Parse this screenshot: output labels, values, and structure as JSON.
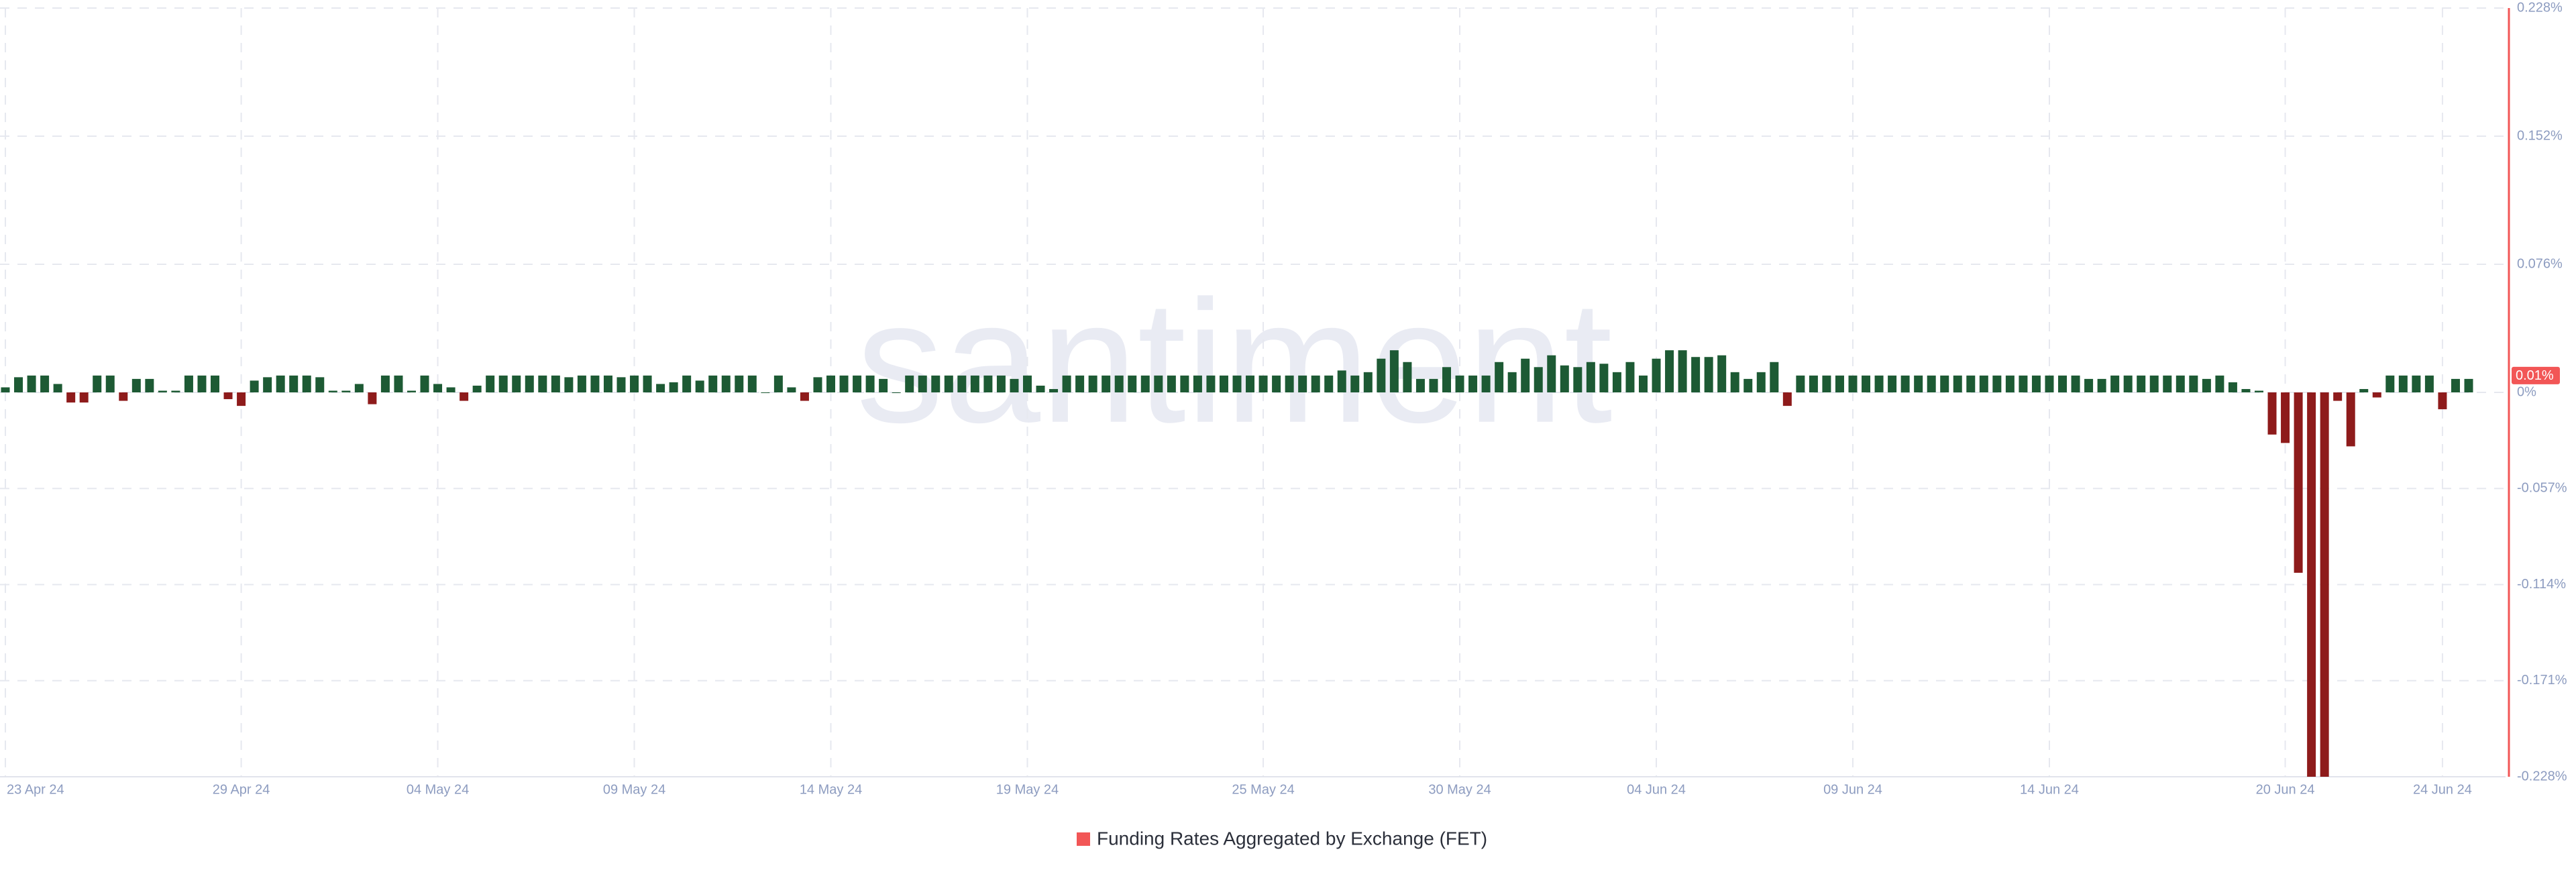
{
  "chart_data": {
    "type": "bar",
    "watermark": "santiment",
    "categories": [
      "23 Apr 24",
      null,
      null,
      null,
      null,
      null,
      null,
      null,
      null,
      null,
      null,
      null,
      null,
      null,
      null,
      null,
      null,
      null,
      "29 Apr 24",
      null,
      null,
      null,
      null,
      null,
      null,
      null,
      null,
      null,
      null,
      null,
      null,
      null,
      null,
      "04 May 24",
      null,
      null,
      null,
      null,
      null,
      null,
      null,
      null,
      null,
      null,
      null,
      null,
      null,
      null,
      "09 May 24",
      null,
      null,
      null,
      null,
      null,
      null,
      null,
      null,
      null,
      null,
      null,
      null,
      null,
      null,
      "14 May 24",
      null,
      null,
      null,
      null,
      null,
      null,
      null,
      null,
      null,
      null,
      null,
      null,
      null,
      null,
      "19 May 24",
      null,
      null,
      null,
      null,
      null,
      null,
      null,
      null,
      null,
      null,
      null,
      null,
      null,
      null,
      null,
      null,
      null,
      "25 May 24",
      null,
      null,
      null,
      null,
      null,
      null,
      null,
      null,
      null,
      null,
      null,
      null,
      null,
      null,
      "30 May 24",
      null,
      null,
      null,
      null,
      null,
      null,
      null,
      null,
      null,
      null,
      null,
      null,
      null,
      null,
      "04 Jun 24",
      null,
      null,
      null,
      null,
      null,
      null,
      null,
      null,
      null,
      null,
      null,
      null,
      null,
      null,
      "09 Jun 24",
      null,
      null,
      null,
      null,
      null,
      null,
      null,
      null,
      null,
      null,
      null,
      null,
      null,
      null,
      "14 Jun 24",
      null,
      null,
      null,
      null,
      null,
      null,
      null,
      null,
      null,
      null,
      null,
      null,
      null,
      null,
      null,
      null,
      null,
      "20 Jun 24",
      null,
      null,
      null,
      null,
      null,
      null,
      null,
      null,
      null,
      null,
      null,
      "24 Jun 24",
      null,
      null
    ],
    "series": [
      {
        "name": "Funding Rates Aggregated by Exchange (FET)",
        "color": "#1d5a34",
        "negative_color": "#8e1b1b",
        "values": [
          0.003,
          0.009,
          0.01,
          0.01,
          0.005,
          -0.006,
          -0.006,
          0.01,
          0.01,
          -0.005,
          0.008,
          0.008,
          0.001,
          0.001,
          0.01,
          0.01,
          0.01,
          -0.004,
          -0.008,
          0.007,
          0.009,
          0.01,
          0.01,
          0.01,
          0.009,
          0.001,
          0.001,
          0.005,
          -0.007,
          0.01,
          0.01,
          0.001,
          0.01,
          0.005,
          0.003,
          -0.005,
          0.004,
          0.01,
          0.01,
          0.01,
          0.01,
          0.01,
          0.01,
          0.009,
          0.01,
          0.01,
          0.01,
          0.009,
          0.01,
          0.01,
          0.005,
          0.006,
          0.01,
          0.007,
          0.01,
          0.01,
          0.01,
          0.01,
          0,
          0.01,
          0.003,
          -0.005,
          0.009,
          0.01,
          0.01,
          0.01,
          0.01,
          0.008,
          0,
          0.01,
          0.01,
          0.01,
          0.01,
          0.01,
          0.01,
          0.01,
          0.01,
          0.008,
          0.01,
          0.004,
          0.002,
          0.01,
          0.01,
          0.01,
          0.01,
          0.01,
          0.01,
          0.01,
          0.01,
          0.01,
          0.01,
          0.01,
          0.01,
          0.01,
          0.01,
          0.01,
          0.01,
          0.01,
          0.01,
          0.01,
          0.01,
          0.01,
          0.013,
          0.01,
          0.012,
          0.02,
          0.025,
          0.018,
          0.008,
          0.008,
          0.015,
          0.01,
          0.01,
          0.01,
          0.018,
          0.012,
          0.02,
          0.015,
          0.022,
          0.016,
          0.015,
          0.018,
          0.017,
          0.012,
          0.018,
          0.01,
          0.02,
          0.025,
          0.025,
          0.021,
          0.021,
          0.022,
          0.012,
          0.008,
          0.012,
          0.018,
          -0.008,
          0.01,
          0.01,
          0.01,
          0.01,
          0.01,
          0.01,
          0.01,
          0.01,
          0.01,
          0.01,
          0.01,
          0.01,
          0.01,
          0.01,
          0.01,
          0.01,
          0.01,
          0.01,
          0.01,
          0.01,
          0.01,
          0.01,
          0.008,
          0.008,
          0.01,
          0.01,
          0.01,
          0.01,
          0.01,
          0.01,
          0.01,
          0.008,
          0.01,
          0.006,
          0.002,
          0.001,
          -0.025,
          -0.03,
          -0.107,
          -0.228,
          -0.228,
          -0.005,
          -0.032,
          0.002,
          -0.003,
          0.01,
          0.01,
          0.01,
          0.01,
          -0.01,
          0.008,
          0.008
        ]
      }
    ],
    "ylim": [
      -0.228,
      0.228
    ],
    "yticks": [
      {
        "value": 0.228,
        "label": "0.228%"
      },
      {
        "value": 0.152,
        "label": "0.152%"
      },
      {
        "value": 0.076,
        "label": "0.076%"
      },
      {
        "value": 0,
        "label": "0%"
      },
      {
        "value": -0.057,
        "label": "-0.057%"
      },
      {
        "value": -0.114,
        "label": "-0.114%"
      },
      {
        "value": -0.171,
        "label": "-0.171%"
      },
      {
        "value": -0.228,
        "label": "-0.228%"
      }
    ],
    "current_value": {
      "value": 0.01,
      "label": "0.01%"
    },
    "axis_color": "#f25656",
    "grid": true
  }
}
